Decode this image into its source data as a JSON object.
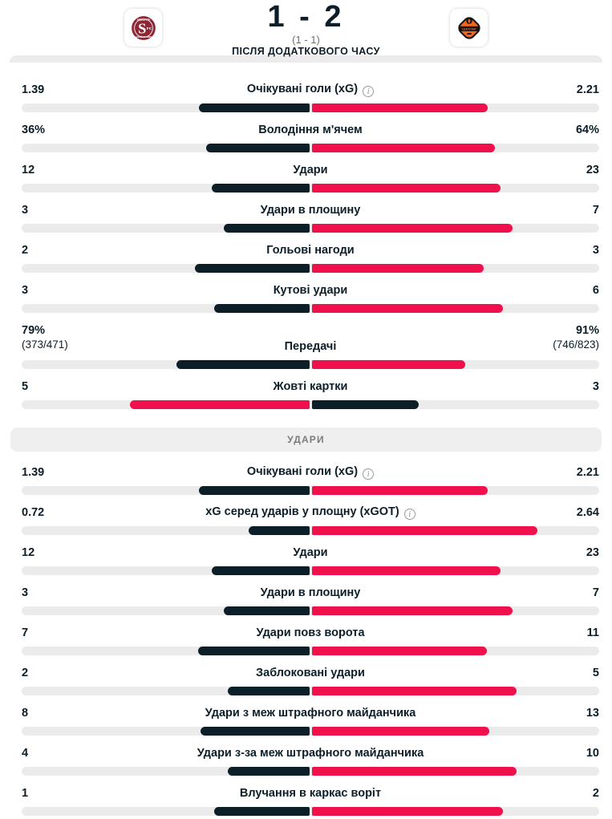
{
  "header": {
    "score": "1 - 2",
    "partial_score": "(1 - 1)",
    "note": "ПІСЛЯ ДОДАТКОВОГО ЧАСУ",
    "home_logo_icon": "servette-fc-logo",
    "away_logo_icon": "shakhtar-donetsk-logo"
  },
  "colors": {
    "leader_bar": "#f0104b",
    "trailer_bar": "#0c1e28",
    "track": "#ebebeb",
    "banner_bg": "#efefef",
    "banner_text": "#7b7b7b"
  },
  "sections": [
    {
      "title": null,
      "rows": [
        {
          "label": "Очікувані голи (xG)",
          "info": true,
          "home": "1.39",
          "away": "2.21",
          "home_value": 1.39,
          "away_value": 2.21
        },
        {
          "label": "Володіння м'ячем",
          "info": false,
          "home": "36%",
          "away": "64%",
          "home_value": 36,
          "away_value": 64
        },
        {
          "label": "Удари",
          "info": false,
          "home": "12",
          "away": "23",
          "home_value": 12,
          "away_value": 23
        },
        {
          "label": "Удари в площину",
          "info": false,
          "home": "3",
          "away": "7",
          "home_value": 3,
          "away_value": 7
        },
        {
          "label": "Гольові нагоди",
          "info": false,
          "home": "2",
          "away": "3",
          "home_value": 2,
          "away_value": 3
        },
        {
          "label": "Кутові удари",
          "info": false,
          "home": "3",
          "away": "6",
          "home_value": 3,
          "away_value": 6
        },
        {
          "label": "Передачі",
          "info": false,
          "home": "79%",
          "away": "91%",
          "home_sub": "(373/471)",
          "away_sub": "(746/823)",
          "home_value": 79,
          "away_value": 91
        },
        {
          "label": "Жовті картки",
          "info": false,
          "home": "5",
          "away": "3",
          "home_value": 5,
          "away_value": 3
        }
      ]
    },
    {
      "title": "УДАРИ",
      "rows": [
        {
          "label": "Очікувані голи (xG)",
          "info": true,
          "home": "1.39",
          "away": "2.21",
          "home_value": 1.39,
          "away_value": 2.21
        },
        {
          "label": "xG серед ударів у площну (xGOT)",
          "info": true,
          "home": "0.72",
          "away": "2.64",
          "home_value": 0.72,
          "away_value": 2.64
        },
        {
          "label": "Удари",
          "info": false,
          "home": "12",
          "away": "23",
          "home_value": 12,
          "away_value": 23
        },
        {
          "label": "Удари в площину",
          "info": false,
          "home": "3",
          "away": "7",
          "home_value": 3,
          "away_value": 7
        },
        {
          "label": "Удари повз ворота",
          "info": false,
          "home": "7",
          "away": "11",
          "home_value": 7,
          "away_value": 11
        },
        {
          "label": "Заблоковані удари",
          "info": false,
          "home": "2",
          "away": "5",
          "home_value": 2,
          "away_value": 5
        },
        {
          "label": "Удари з меж штрафного майданчика",
          "info": false,
          "home": "8",
          "away": "13",
          "home_value": 8,
          "away_value": 13
        },
        {
          "label": "Удари з-за меж штрафного майданчика",
          "info": false,
          "home": "4",
          "away": "10",
          "home_value": 4,
          "away_value": 10
        },
        {
          "label": "Влучання в каркас воріт",
          "info": false,
          "home": "1",
          "away": "2",
          "home_value": 1,
          "away_value": 2
        }
      ]
    }
  ]
}
